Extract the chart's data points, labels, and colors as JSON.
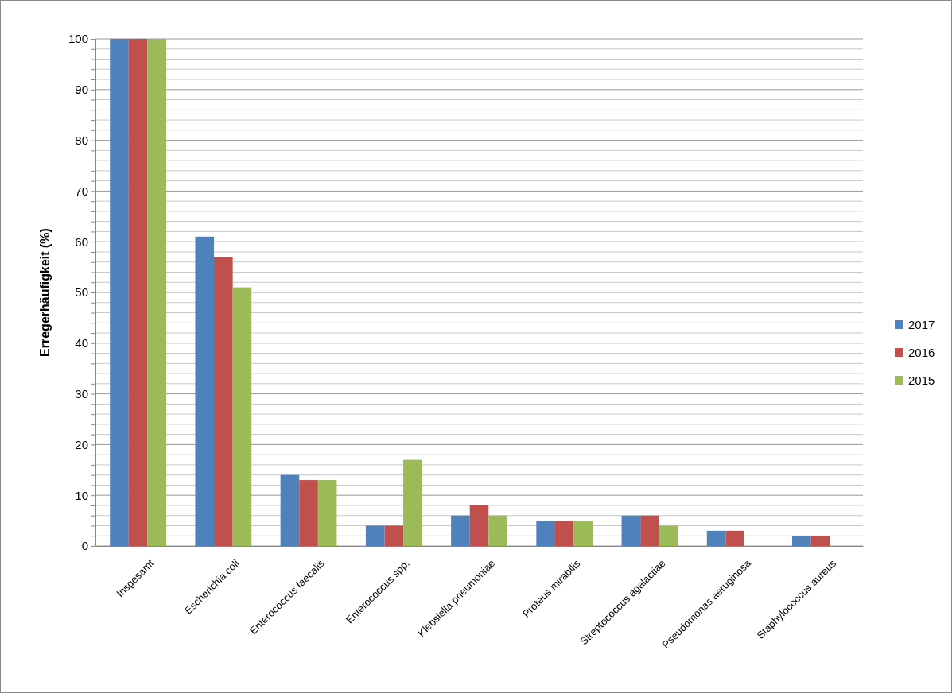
{
  "chart_data": {
    "type": "bar",
    "ylabel": "Erregerhäufigkeit (%)",
    "categories": [
      "Insgesamt",
      "Escherichia coli",
      "Enterococcus faecalis",
      "Enterococcus spp.",
      "Klebsiella pneumoniae",
      "Proteus mirabilis",
      "Streptococcus agalactiae",
      "Pseudomonas  aeruginosa",
      "Staphylococcus aureus"
    ],
    "series": [
      {
        "name": "2017",
        "color": "#4f81bd",
        "values": [
          100,
          61,
          14,
          4,
          6,
          5,
          6,
          3,
          2
        ]
      },
      {
        "name": "2016",
        "color": "#c0504d",
        "values": [
          100,
          57,
          13,
          4,
          8,
          5,
          6,
          3,
          2
        ]
      },
      {
        "name": "2015",
        "color": "#9bbb59",
        "values": [
          100,
          51,
          13,
          17,
          6,
          5,
          4,
          null,
          null
        ]
      }
    ],
    "ylim": [
      0,
      100
    ],
    "yticks": [
      0,
      {
        "value": 2,
        "label": null
      },
      {
        "value": 4,
        "label": null
      },
      {
        "value": 6,
        "label": null
      },
      {
        "value": 8,
        "label": null
      },
      10,
      {
        "value": 12,
        "label": null
      },
      {
        "value": 14,
        "label": null
      },
      {
        "value": 16,
        "label": null
      },
      {
        "value": 18,
        "label": null
      },
      20,
      {
        "value": 22,
        "label": null
      },
      {
        "value": 24,
        "label": null
      },
      {
        "value": 26,
        "label": null
      },
      {
        "value": 28,
        "label": null
      },
      30,
      {
        "value": 32,
        "label": null
      },
      {
        "value": 34,
        "label": null
      },
      {
        "value": 36,
        "label": null
      },
      {
        "value": 38,
        "label": null
      },
      40,
      {
        "value": 42,
        "label": null
      },
      {
        "value": 44,
        "label": null
      },
      {
        "value": 46,
        "label": null
      },
      {
        "value": 48,
        "label": null
      },
      50,
      {
        "value": 52,
        "label": null
      },
      {
        "value": 54,
        "label": null
      },
      {
        "value": 56,
        "label": null
      },
      {
        "value": 58,
        "label": null
      },
      60,
      {
        "value": 62,
        "label": null
      },
      {
        "value": 64,
        "label": null
      },
      {
        "value": 66,
        "label": null
      },
      {
        "value": 68,
        "label": null
      },
      70,
      {
        "value": 72,
        "label": null
      },
      {
        "value": 74,
        "label": null
      },
      {
        "value": 76,
        "label": null
      },
      {
        "value": 78,
        "label": null
      },
      80,
      {
        "value": 82,
        "label": null
      },
      {
        "value": 84,
        "label": null
      },
      {
        "value": 86,
        "label": null
      },
      {
        "value": 88,
        "label": null
      },
      90,
      {
        "value": 92,
        "label": null
      },
      {
        "value": 94,
        "label": null
      },
      {
        "value": 96,
        "label": null
      },
      {
        "value": 98,
        "label": null
      },
      100
    ],
    "grid": "y",
    "legend": "right"
  }
}
